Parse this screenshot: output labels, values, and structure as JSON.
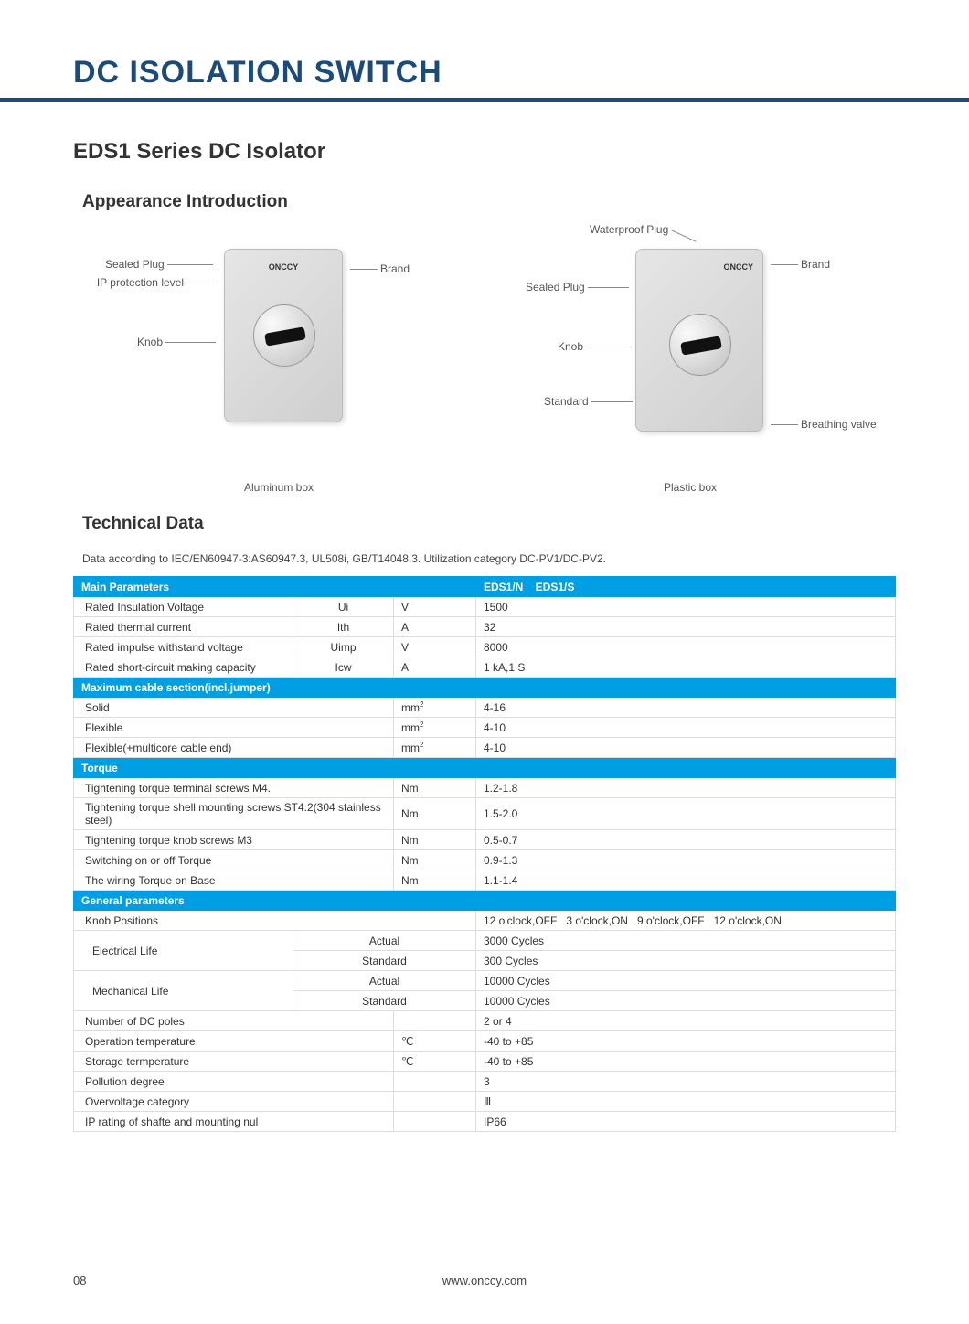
{
  "header": {
    "main_title": "DC ISOLATION SWITCH",
    "series_title": "EDS1 Series DC Isolator",
    "appearance_title": "Appearance Introduction",
    "technical_title": "Technical Data",
    "tech_intro": "Data according to IEC/EN60947-3:AS60947.3, UL508i, GB/T14048.3. Utilization category DC-PV1/DC-PV2."
  },
  "diagram": {
    "left": {
      "caption": "Aluminum box",
      "brand_text": "ONCCY",
      "callouts": {
        "sealed_plug": "Sealed Plug",
        "ip_level": "IP protection level",
        "knob": "Knob",
        "brand": "Brand"
      }
    },
    "right": {
      "caption": "Plastic box",
      "brand_text": "ONCCY",
      "callouts": {
        "waterproof_plug": "Waterproof Plug",
        "sealed_plug": "Sealed Plug",
        "knob": "Knob",
        "standard": "Standard",
        "brand": "Brand",
        "breathing_valve": "Breathing valve"
      }
    }
  },
  "table": {
    "headers": {
      "main_params": "Main Parameters",
      "model_cols": "EDS1/N    EDS1/S",
      "max_cable": "Maximum cable section(incl.jumper)",
      "torque": "Torque",
      "general": "General parameters"
    },
    "main_rows": [
      {
        "param": "Rated Insulation Voltage",
        "sym": "Ui",
        "unit": "V",
        "val": "1500"
      },
      {
        "param": "Rated thermal current",
        "sym": "Ith",
        "unit": "A",
        "val": "32"
      },
      {
        "param": "Rated impulse withstand voltage",
        "sym": "Uimp",
        "unit": "V",
        "val": "8000"
      },
      {
        "param": "Rated short-circuit making capacity",
        "sym": "Icw",
        "unit": "A",
        "val": "1 kA,1 S"
      }
    ],
    "cable_rows": [
      {
        "param": "Solid",
        "sym": "",
        "unit_html": "mm²",
        "val": "4-16"
      },
      {
        "param": "Flexible",
        "sym": "",
        "unit_html": "mm²",
        "val": "4-10"
      },
      {
        "param": "Flexible(+multicore cable end)",
        "sym": "",
        "unit_html": "mm²",
        "val": "4-10"
      }
    ],
    "torque_rows": [
      {
        "param": "Tightening torque terminal screws M4.",
        "unit": "Nm",
        "val": "1.2-1.8"
      },
      {
        "param": "Tightening torque shell mounting screws ST4.2(304 stainless steel)",
        "unit": "Nm",
        "val": "1.5-2.0"
      },
      {
        "param": "Tightening torque knob screws M3",
        "unit": "Nm",
        "val": "0.5-0.7"
      },
      {
        "param": "Switching on or off Torque",
        "unit": "Nm",
        "val": "0.9-1.3"
      },
      {
        "param": "The wiring Torque on Base",
        "unit": "Nm",
        "val": "1.1-1.4"
      }
    ],
    "general_rows": {
      "knob_positions": {
        "param": "Knob Positions",
        "val": "12 o'clock,OFF   3 o'clock,ON   9 o'clock,OFF   12 o'clock,ON"
      },
      "electrical_life_label": "Electrical Life",
      "mechanical_life_label": "Mechanical Life",
      "actual_label": "Actual",
      "standard_label": "Standard",
      "elec_actual": "3000 Cycles",
      "elec_standard": "300 Cycles",
      "mech_actual": "10000 Cycles",
      "mech_standard": "10000 Cycles",
      "simple_rows": [
        {
          "param": "Number of DC poles",
          "unit": "",
          "val": "2 or 4"
        },
        {
          "param": "Operation temperature",
          "unit": "℃",
          "val": "-40 to +85"
        },
        {
          "param": "Storage termperature",
          "unit": "℃",
          "val": "-40 to +85"
        },
        {
          "param": "Pollution degree",
          "unit": "",
          "val": "3"
        },
        {
          "param": "Overvoltage category",
          "unit": "",
          "val": "Ⅲ"
        },
        {
          "param": "IP rating of shafte and mounting nul",
          "unit": "",
          "val": "IP66"
        }
      ]
    }
  },
  "footer": {
    "page_num": "08",
    "url": "www.onccy.com"
  },
  "colors": {
    "title_color": "#1a4b7a",
    "header_bg": "#009fe3",
    "border_color": "#ddd"
  }
}
